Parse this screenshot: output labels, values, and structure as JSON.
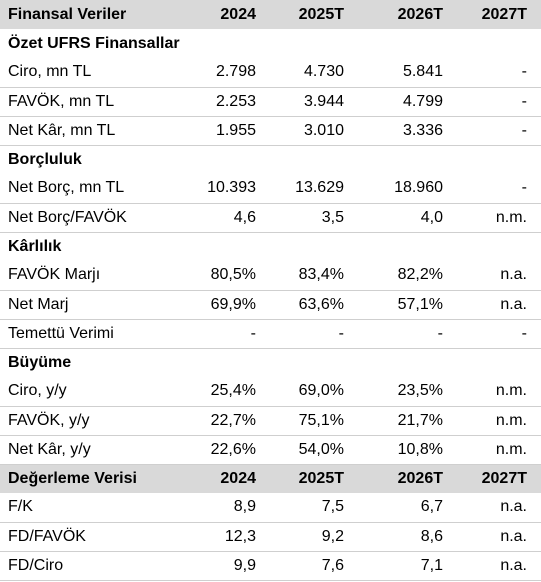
{
  "header": {
    "label": "Finansal Veriler",
    "years": [
      "2024",
      "2025T",
      "2026T",
      "2027T"
    ]
  },
  "sections": [
    {
      "title": "Özet UFRS Finansallar",
      "rows": [
        {
          "label": "Ciro, mn TL",
          "values": [
            "2.798",
            "4.730",
            "5.841",
            "-"
          ]
        },
        {
          "label": "FAVÖK, mn TL",
          "values": [
            "2.253",
            "3.944",
            "4.799",
            "-"
          ]
        },
        {
          "label": "Net Kâr, mn TL",
          "values": [
            "1.955",
            "3.010",
            "3.336",
            "-"
          ]
        }
      ]
    },
    {
      "title": "Borçluluk",
      "rows": [
        {
          "label": "Net Borç, mn TL",
          "values": [
            "10.393",
            "13.629",
            "18.960",
            "-"
          ]
        },
        {
          "label": "Net Borç/FAVÖK",
          "values": [
            "4,6",
            "3,5",
            "4,0",
            "n.m."
          ]
        }
      ]
    },
    {
      "title": "Kârlılık",
      "rows": [
        {
          "label": "FAVÖK Marjı",
          "values": [
            "80,5%",
            "83,4%",
            "82,2%",
            "n.a."
          ]
        },
        {
          "label": "Net Marj",
          "values": [
            "69,9%",
            "63,6%",
            "57,1%",
            "n.a."
          ]
        },
        {
          "label": "Temettü Verimi",
          "values": [
            "-",
            "-",
            "-",
            "-"
          ]
        }
      ]
    },
    {
      "title": "Büyüme",
      "rows": [
        {
          "label": "Ciro, y/y",
          "values": [
            "25,4%",
            "69,0%",
            "23,5%",
            "n.m."
          ]
        },
        {
          "label": "FAVÖK, y/y",
          "values": [
            "22,7%",
            "75,1%",
            "21,7%",
            "n.m."
          ]
        },
        {
          "label": "Net Kâr, y/y",
          "values": [
            "22,6%",
            "54,0%",
            "10,8%",
            "n.m."
          ]
        }
      ]
    }
  ],
  "valuation": {
    "header": {
      "label": "Değerleme Verisi",
      "years": [
        "2024",
        "2025T",
        "2026T",
        "2027T"
      ]
    },
    "rows": [
      {
        "label": "F/K",
        "values": [
          "8,9",
          "7,5",
          "6,7",
          "n.a."
        ]
      },
      {
        "label": "FD/FAVÖK",
        "values": [
          "12,3",
          "9,2",
          "8,6",
          "n.a."
        ]
      },
      {
        "label": "FD/Ciro",
        "values": [
          "9,9",
          "7,6",
          "7,1",
          "n.a."
        ]
      }
    ]
  }
}
